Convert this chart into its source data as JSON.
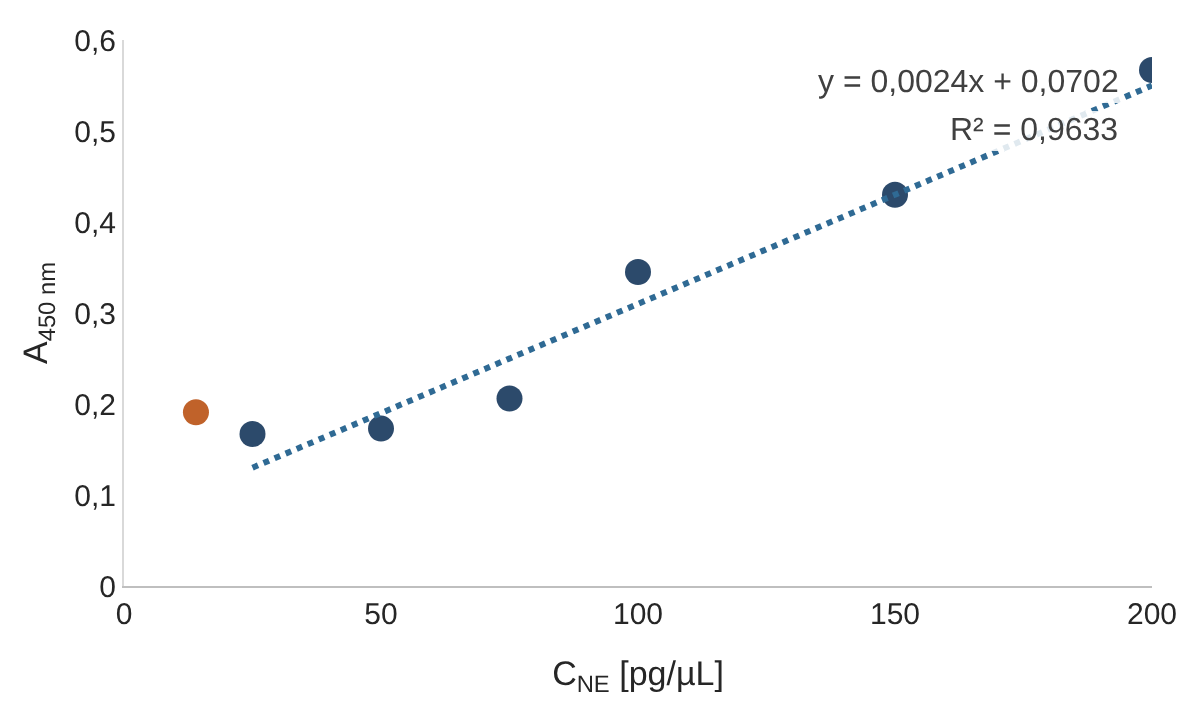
{
  "chart_data": {
    "type": "scatter",
    "xlabel": "C$_{NE}$ [pg/µL]",
    "ylabel": "A$_{450 nm}$",
    "xlim": [
      0,
      200
    ],
    "xticks": [
      0,
      50,
      100,
      150,
      200
    ],
    "ylim": [
      0,
      0.6
    ],
    "yticks": [
      0,
      {
        "value": 0.1,
        "label": "0,1"
      },
      {
        "value": 0.2,
        "label": "0,2"
      },
      {
        "value": 0.3,
        "label": "0,3"
      },
      {
        "value": 0.4,
        "label": "0,4"
      },
      {
        "value": 0.5,
        "label": "0,5"
      },
      {
        "value": 0.6,
        "label": "0,6"
      }
    ],
    "series": [
      {
        "color": "#c0622a",
        "x": [
          14
        ],
        "values": [
          0.191
        ]
      },
      {
        "color": "#2c4a6b",
        "x": [
          25,
          50,
          75,
          100,
          150,
          200
        ],
        "values": [
          0.167,
          0.173,
          0.206,
          0.345,
          0.43,
          0.567
        ]
      },
      {
        "type": "line",
        "color": "#2f6a94",
        "line_style": "dotted",
        "marker": "none",
        "x": [
          25,
          200
        ],
        "values": [
          0.13,
          0.55
        ]
      }
    ],
    "annotations": [
      "y = 0,0024x + 0,0702",
      "R² = 0,9633"
    ],
    "marker": "circle"
  }
}
